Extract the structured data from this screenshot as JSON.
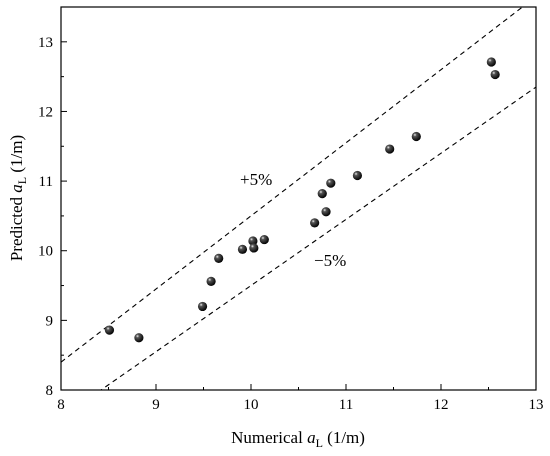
{
  "chart_data": {
    "type": "scatter",
    "xlabel": {
      "prefix": "Numerical ",
      "symbol": "a",
      "subscript": "L",
      "suffix": " (1/m)"
    },
    "ylabel": {
      "prefix": "Predicted ",
      "symbol": "a",
      "subscript": "L",
      "suffix": " (1/m)"
    },
    "xlim": [
      8,
      13
    ],
    "ylim": [
      8,
      13.5
    ],
    "xticks": [
      8,
      9,
      10,
      11,
      12,
      13
    ],
    "yticks": [
      8,
      9,
      10,
      11,
      12,
      13
    ],
    "grid": false,
    "points": [
      {
        "x": 8.51,
        "y": 8.86
      },
      {
        "x": 8.82,
        "y": 8.75
      },
      {
        "x": 9.49,
        "y": 9.2
      },
      {
        "x": 9.58,
        "y": 9.56
      },
      {
        "x": 9.66,
        "y": 9.89
      },
      {
        "x": 9.91,
        "y": 10.02
      },
      {
        "x": 10.02,
        "y": 10.14
      },
      {
        "x": 10.03,
        "y": 10.04
      },
      {
        "x": 10.14,
        "y": 10.16
      },
      {
        "x": 10.67,
        "y": 10.4
      },
      {
        "x": 10.75,
        "y": 10.82
      },
      {
        "x": 10.79,
        "y": 10.56
      },
      {
        "x": 10.84,
        "y": 10.97
      },
      {
        "x": 11.12,
        "y": 11.08
      },
      {
        "x": 11.46,
        "y": 11.46
      },
      {
        "x": 11.74,
        "y": 11.64
      },
      {
        "x": 12.53,
        "y": 12.71
      },
      {
        "x": 12.57,
        "y": 12.53
      }
    ],
    "reference_lines": [
      {
        "label": "+5%",
        "factor": 1.05,
        "style": "dashed"
      },
      {
        "label": "−5%",
        "factor": 0.95,
        "style": "dashed"
      }
    ]
  }
}
